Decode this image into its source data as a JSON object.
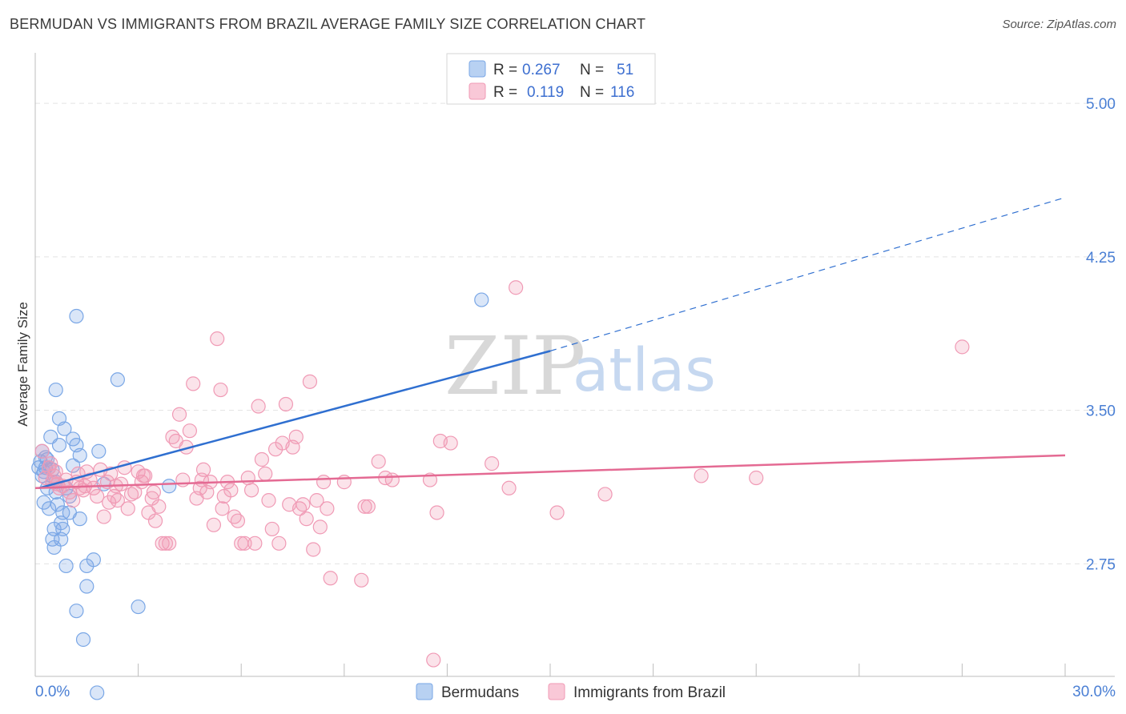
{
  "title": "BERMUDAN VS IMMIGRANTS FROM BRAZIL AVERAGE FAMILY SIZE CORRELATION CHART",
  "source": "Source: ZipAtlas.com",
  "watermark": {
    "zip": "ZIP",
    "atlas": "atlas"
  },
  "legend": {
    "r_label": "R =",
    "n_label": "N =",
    "rows": [
      {
        "r": "0.267",
        "n": "51",
        "color": "#7aa7e6"
      },
      {
        "r": "0.119",
        "n": "116",
        "color": "#f09ab5"
      }
    ]
  },
  "chart_data": {
    "type": "scatter",
    "title": "BERMUDAN VS IMMIGRANTS FROM BRAZIL AVERAGE FAMILY SIZE CORRELATION CHART",
    "xlabel": "",
    "ylabel": "Average Family Size",
    "xlim": [
      0,
      30
    ],
    "ylim": [
      2.2,
      5.2
    ],
    "x_tick_labels": [
      "0.0%",
      "30.0%"
    ],
    "y_ticks": [
      2.75,
      3.5,
      4.25,
      5.0
    ],
    "y_tick_labels": [
      "2.75",
      "3.50",
      "4.25",
      "5.00"
    ],
    "grid": "horizontal dashed",
    "legend_position": "top-center",
    "series": [
      {
        "name": "Bermudans",
        "color": "#7aa7e6",
        "line_color": "#2f6fd0",
        "trend": {
          "x0": 0.1,
          "y0": 3.12,
          "x1": 15.0,
          "y1": 3.79,
          "x_ext": 30.0,
          "y_ext": 4.54
        },
        "points": [
          [
            0.1,
            3.22
          ],
          [
            0.15,
            3.25
          ],
          [
            0.2,
            3.3
          ],
          [
            0.2,
            3.18
          ],
          [
            0.25,
            3.05
          ],
          [
            0.3,
            3.22
          ],
          [
            0.3,
            3.27
          ],
          [
            0.35,
            3.12
          ],
          [
            0.4,
            3.02
          ],
          [
            0.45,
            3.37
          ],
          [
            0.5,
            3.21
          ],
          [
            0.5,
            2.87
          ],
          [
            0.55,
            2.83
          ],
          [
            0.55,
            2.92
          ],
          [
            0.6,
            3.6
          ],
          [
            0.6,
            3.15
          ],
          [
            0.65,
            3.04
          ],
          [
            0.7,
            3.46
          ],
          [
            0.7,
            3.33
          ],
          [
            0.75,
            2.95
          ],
          [
            0.75,
            2.87
          ],
          [
            0.8,
            3.0
          ],
          [
            0.8,
            2.92
          ],
          [
            0.85,
            3.41
          ],
          [
            0.9,
            2.74
          ],
          [
            1.0,
            3.0
          ],
          [
            1.1,
            3.23
          ],
          [
            1.1,
            3.36
          ],
          [
            1.2,
            3.33
          ],
          [
            1.2,
            3.96
          ],
          [
            1.2,
            2.52
          ],
          [
            1.3,
            2.97
          ],
          [
            1.4,
            2.38
          ],
          [
            1.5,
            2.74
          ],
          [
            1.5,
            2.64
          ],
          [
            1.3,
            3.28
          ],
          [
            1.7,
            2.77
          ],
          [
            1.8,
            2.12
          ],
          [
            1.85,
            3.3
          ],
          [
            2.4,
            3.65
          ],
          [
            2.0,
            3.14
          ],
          [
            3.0,
            2.54
          ],
          [
            3.9,
            3.13
          ],
          [
            13.0,
            4.04
          ],
          [
            0.4,
            3.22
          ],
          [
            0.9,
            3.12
          ],
          [
            0.25,
            3.2
          ],
          [
            0.5,
            3.15
          ],
          [
            0.6,
            3.1
          ],
          [
            0.35,
            3.26
          ],
          [
            1.0,
            3.08
          ]
        ]
      },
      {
        "name": "Immigrants from Brazil",
        "color": "#f09ab5",
        "line_color": "#e46a93",
        "trend": {
          "x0": 0.0,
          "y0": 3.12,
          "x1": 30.0,
          "y1": 3.28
        },
        "points": [
          [
            0.2,
            3.3
          ],
          [
            0.3,
            3.17
          ],
          [
            0.4,
            3.22
          ],
          [
            0.5,
            3.15
          ],
          [
            0.6,
            3.2
          ],
          [
            0.7,
            3.12
          ],
          [
            0.8,
            3.13
          ],
          [
            0.9,
            3.16
          ],
          [
            1.0,
            3.1
          ],
          [
            1.1,
            3.06
          ],
          [
            1.2,
            3.15
          ],
          [
            1.3,
            3.12
          ],
          [
            1.4,
            3.11
          ],
          [
            1.5,
            3.2
          ],
          [
            1.6,
            3.16
          ],
          [
            1.7,
            3.12
          ],
          [
            1.8,
            3.08
          ],
          [
            1.9,
            3.21
          ],
          [
            2.0,
            2.98
          ],
          [
            2.1,
            3.15
          ],
          [
            2.2,
            3.19
          ],
          [
            2.3,
            3.08
          ],
          [
            2.4,
            3.06
          ],
          [
            2.5,
            3.14
          ],
          [
            2.6,
            3.22
          ],
          [
            2.7,
            3.02
          ],
          [
            2.8,
            3.09
          ],
          [
            2.9,
            3.1
          ],
          [
            3.0,
            3.2
          ],
          [
            3.1,
            3.15
          ],
          [
            3.2,
            3.18
          ],
          [
            3.3,
            3.0
          ],
          [
            3.4,
            3.07
          ],
          [
            3.5,
            2.96
          ],
          [
            3.6,
            3.03
          ],
          [
            3.7,
            2.85
          ],
          [
            3.8,
            2.85
          ],
          [
            3.9,
            2.85
          ],
          [
            4.0,
            3.37
          ],
          [
            4.1,
            3.35
          ],
          [
            4.2,
            3.48
          ],
          [
            4.3,
            3.16
          ],
          [
            4.4,
            3.32
          ],
          [
            4.5,
            3.4
          ],
          [
            4.6,
            3.63
          ],
          [
            4.7,
            3.07
          ],
          [
            4.8,
            3.12
          ],
          [
            4.9,
            3.21
          ],
          [
            5.0,
            3.1
          ],
          [
            5.1,
            3.15
          ],
          [
            5.2,
            2.94
          ],
          [
            5.3,
            3.85
          ],
          [
            5.4,
            3.6
          ],
          [
            5.5,
            3.08
          ],
          [
            5.6,
            3.15
          ],
          [
            5.7,
            3.11
          ],
          [
            5.8,
            2.98
          ],
          [
            5.9,
            2.96
          ],
          [
            6.0,
            2.85
          ],
          [
            6.1,
            2.85
          ],
          [
            6.2,
            3.17
          ],
          [
            6.3,
            3.11
          ],
          [
            6.4,
            2.85
          ],
          [
            6.5,
            3.52
          ],
          [
            6.6,
            3.26
          ],
          [
            6.7,
            3.19
          ],
          [
            6.8,
            3.06
          ],
          [
            6.9,
            2.92
          ],
          [
            7.0,
            3.31
          ],
          [
            7.1,
            2.85
          ],
          [
            7.2,
            3.34
          ],
          [
            7.3,
            3.53
          ],
          [
            7.4,
            3.04
          ],
          [
            7.5,
            3.32
          ],
          [
            7.6,
            3.37
          ],
          [
            7.7,
            3.02
          ],
          [
            7.8,
            3.04
          ],
          [
            7.9,
            2.97
          ],
          [
            8.0,
            3.64
          ],
          [
            8.1,
            2.82
          ],
          [
            8.2,
            3.06
          ],
          [
            8.3,
            2.93
          ],
          [
            8.4,
            3.15
          ],
          [
            8.5,
            3.02
          ],
          [
            8.6,
            2.68
          ],
          [
            9.0,
            3.15
          ],
          [
            9.5,
            2.67
          ],
          [
            9.6,
            3.03
          ],
          [
            9.7,
            3.03
          ],
          [
            10.0,
            3.25
          ],
          [
            10.2,
            3.17
          ],
          [
            10.4,
            3.16
          ],
          [
            11.5,
            3.16
          ],
          [
            11.7,
            3.0
          ],
          [
            11.8,
            3.35
          ],
          [
            12.1,
            3.34
          ],
          [
            11.6,
            2.28
          ],
          [
            13.3,
            3.24
          ],
          [
            13.8,
            3.12
          ],
          [
            14.0,
            4.1
          ],
          [
            15.2,
            3.0
          ],
          [
            16.6,
            3.09
          ],
          [
            19.4,
            3.18
          ],
          [
            21.0,
            3.17
          ],
          [
            27.0,
            3.81
          ],
          [
            0.45,
            3.24
          ],
          [
            0.55,
            3.18
          ],
          [
            0.65,
            3.14
          ],
          [
            1.25,
            3.19
          ],
          [
            1.45,
            3.13
          ],
          [
            2.15,
            3.05
          ],
          [
            2.35,
            3.13
          ],
          [
            3.15,
            3.18
          ],
          [
            3.45,
            3.1
          ],
          [
            4.85,
            3.16
          ],
          [
            5.45,
            3.02
          ]
        ]
      }
    ]
  },
  "bottom_legend": [
    {
      "label": "Bermudans",
      "color": "#7aa7e6"
    },
    {
      "label": "Immigrants from Brazil",
      "color": "#f09ab5"
    }
  ]
}
